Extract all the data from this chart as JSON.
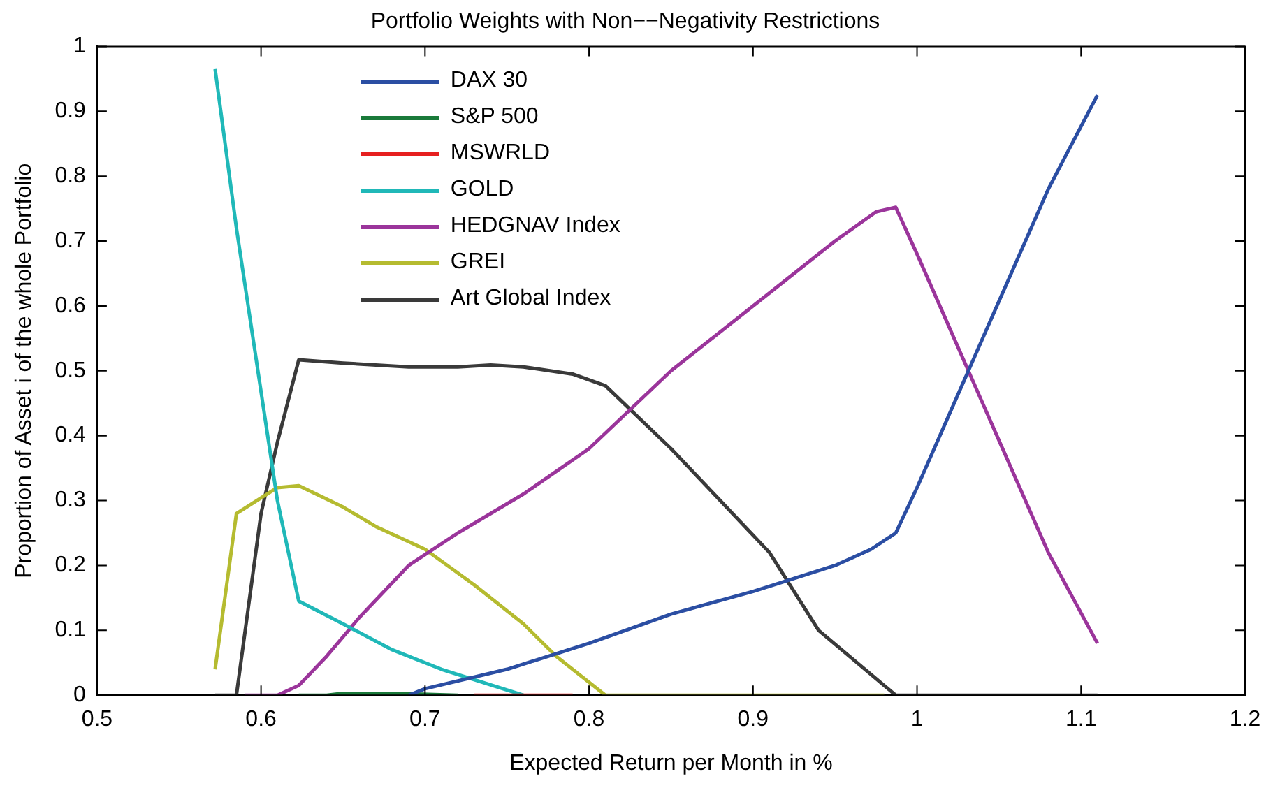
{
  "chart_data": {
    "type": "line",
    "title": "Portfolio Weights with Non−−Negativity Restrictions",
    "xlabel": "Expected Return per Month in %",
    "ylabel": "Proportion of Asset i of the whole Portfolio",
    "xlim": [
      0.5,
      1.2
    ],
    "xticks": [
      0.5,
      0.6,
      0.7,
      0.8,
      0.9,
      1,
      1.1,
      1.2
    ],
    "ylim": [
      0,
      1
    ],
    "yticks": [
      0,
      0.1,
      0.2,
      0.3,
      0.4,
      0.5,
      0.6,
      0.7,
      0.8,
      0.9,
      1
    ],
    "grid": false,
    "legend": "top left",
    "marker": "none",
    "line_style": "solid",
    "series": [
      {
        "name": "DAX 30",
        "color": "#2b4ea3",
        "x": [
          0.69,
          0.7,
          0.75,
          0.8,
          0.85,
          0.9,
          0.95,
          0.972,
          0.987,
          1.0,
          1.04,
          1.08,
          1.11
        ],
        "values": [
          0,
          0.01,
          0.04,
          0.08,
          0.125,
          0.16,
          0.2,
          0.225,
          0.25,
          0.32,
          0.55,
          0.78,
          0.925
        ]
      },
      {
        "name": "S&P 500",
        "color": "#1a7a3a",
        "x": [
          0.623,
          0.64,
          0.65,
          0.68,
          0.72
        ],
        "values": [
          0,
          0,
          0.003,
          0.003,
          0
        ]
      },
      {
        "name": "MSWRLD",
        "color": "#e62020",
        "x": [
          0.73,
          0.79
        ],
        "values": [
          0,
          0
        ]
      },
      {
        "name": "GOLD",
        "color": "#20b8b8",
        "x": [
          0.572,
          0.585,
          0.61,
          0.623,
          0.65,
          0.68,
          0.71,
          0.76
        ],
        "values": [
          0.965,
          0.72,
          0.3,
          0.145,
          0.11,
          0.07,
          0.04,
          0
        ]
      },
      {
        "name": "HEDGNAV Index",
        "color": "#9b359b",
        "x": [
          0.59,
          0.61,
          0.623,
          0.64,
          0.66,
          0.69,
          0.72,
          0.76,
          0.8,
          0.85,
          0.9,
          0.92,
          0.95,
          0.975,
          0.987,
          1.0,
          1.04,
          1.08,
          1.11
        ],
        "values": [
          0,
          0,
          0.015,
          0.06,
          0.12,
          0.2,
          0.25,
          0.31,
          0.38,
          0.5,
          0.6,
          0.64,
          0.7,
          0.745,
          0.752,
          0.68,
          0.45,
          0.22,
          0.08
        ]
      },
      {
        "name": "GREI",
        "color": "#b5bb30",
        "x": [
          0.572,
          0.585,
          0.61,
          0.623,
          0.65,
          0.67,
          0.7,
          0.73,
          0.76,
          0.78,
          0.81,
          0.98
        ],
        "values": [
          0.04,
          0.28,
          0.32,
          0.323,
          0.29,
          0.26,
          0.225,
          0.17,
          0.11,
          0.06,
          0,
          0
        ]
      },
      {
        "name": "Art Global Index",
        "color": "#3a3a3a",
        "x": [
          0.572,
          0.585,
          0.6,
          0.61,
          0.623,
          0.65,
          0.69,
          0.72,
          0.74,
          0.76,
          0.79,
          0.81,
          0.85,
          0.88,
          0.91,
          0.94,
          0.987,
          1.11
        ],
        "values": [
          0,
          0,
          0.28,
          0.39,
          0.517,
          0.512,
          0.506,
          0.506,
          0.509,
          0.506,
          0.495,
          0.477,
          0.38,
          0.3,
          0.22,
          0.1,
          0,
          0
        ]
      }
    ]
  }
}
